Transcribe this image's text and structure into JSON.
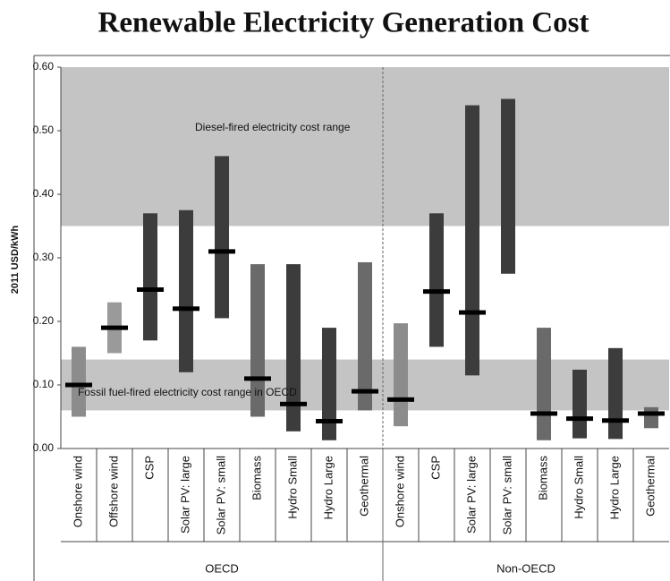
{
  "chart_data": {
    "type": "range",
    "title": "Renewable Electricity Generation Cost",
    "y_label": "2011 USD/kWh",
    "ylim": [
      0,
      0.6
    ],
    "yticks": [
      {
        "value": 0,
        "label": "0.00"
      },
      {
        "value": 0.1,
        "label": "0.10"
      },
      {
        "value": 0.2,
        "label": "0.20"
      },
      {
        "value": 0.3,
        "label": "0.30"
      },
      {
        "value": 0.4,
        "label": "0.40"
      },
      {
        "value": 0.5,
        "label": "0.50"
      },
      {
        "value": 0.6,
        "label": "0.60"
      }
    ],
    "bands": [
      {
        "label": "Diesel-fired electricity cost range",
        "range": [
          0.35,
          0.6
        ],
        "color": "#c4c4c4"
      },
      {
        "label": "Fossil fuel-fired electricity cost range in OECD",
        "range": [
          0.06,
          0.14
        ],
        "color": "#c4c4c4"
      }
    ],
    "groups": [
      {
        "name": "OECD",
        "categories": [
          "Onshore wind",
          "Offshore wind",
          "CSP",
          "Solar PV: large",
          "Solar PV: small",
          "Biomass",
          "Hydro Small",
          "Hydro Large",
          "Geothermal"
        ],
        "low": [
          0.05,
          0.15,
          0.17,
          0.12,
          0.205,
          0.05,
          0.027,
          0.013,
          0.06
        ],
        "high": [
          0.16,
          0.23,
          0.37,
          0.375,
          0.46,
          0.29,
          0.29,
          0.19,
          0.293
        ],
        "mid": [
          0.1,
          0.19,
          0.25,
          0.22,
          0.31,
          0.11,
          0.07,
          0.043,
          0.09
        ],
        "colors": [
          "#8c8c8c",
          "#9a9a9a",
          "#3c3c3c",
          "#3c3c3c",
          "#3c3c3c",
          "#6a6a6a",
          "#3c3c3c",
          "#3c3c3c",
          "#6a6a6a"
        ]
      },
      {
        "name": "Non-OECD",
        "categories": [
          "Onshore wind",
          "CSP",
          "Solar PV: large",
          "Solar PV: small",
          "Biomass",
          "Hydro Small",
          "Hydro Large",
          "Geothermal"
        ],
        "low": [
          0.035,
          0.16,
          0.115,
          0.275,
          0.013,
          0.016,
          0.015,
          0.032
        ],
        "high": [
          0.197,
          0.37,
          0.54,
          0.55,
          0.19,
          0.124,
          0.158,
          0.065
        ],
        "mid": [
          0.077,
          0.247,
          0.214,
          null,
          0.055,
          0.047,
          0.044,
          0.055
        ],
        "colors": [
          "#8c8c8c",
          "#3c3c3c",
          "#3c3c3c",
          "#3c3c3c",
          "#6a6a6a",
          "#3c3c3c",
          "#3c3c3c",
          "#6a6a6a"
        ]
      }
    ]
  }
}
